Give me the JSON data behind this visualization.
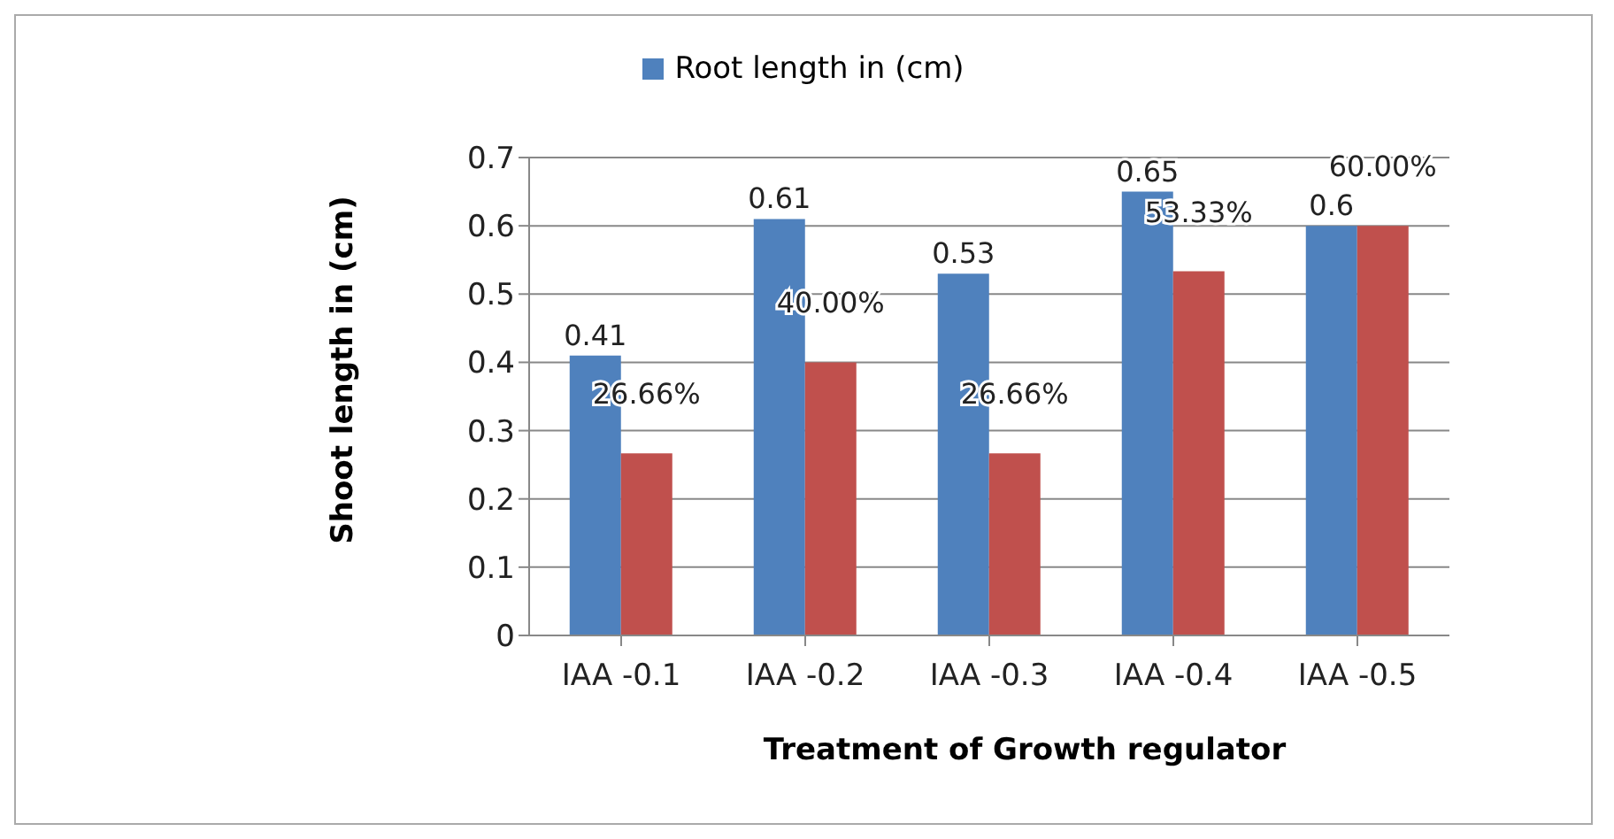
{
  "chart_data": {
    "type": "bar",
    "xlabel": "Treatment of Growth regulator",
    "ylabel": "Shoot length in (cm)",
    "categories": [
      "IAA -0.1",
      "IAA -0.2",
      "IAA -0.3",
      "IAA -0.4",
      "IAA -0.5"
    ],
    "series": [
      {
        "name": "Root length in (cm)",
        "color": "#4f81bd",
        "values": [
          0.41,
          0.61,
          0.53,
          0.65,
          0.6
        ],
        "value_labels": [
          "0.41",
          "0.61",
          "0.53",
          "0.65",
          "0.6"
        ]
      },
      {
        "color": "#c0504d",
        "values": [
          0.2666,
          0.4,
          0.2666,
          0.5333,
          0.6
        ],
        "value_labels": [
          "26.66%",
          "40.00%",
          "26.66%",
          "53.33%",
          "60.00%"
        ]
      }
    ],
    "ylim": [
      0,
      0.7
    ],
    "yticks": [
      0,
      0.1,
      0.2,
      0.3,
      0.4,
      0.5,
      0.6,
      0.7
    ],
    "grid": "y",
    "legend": "top"
  }
}
